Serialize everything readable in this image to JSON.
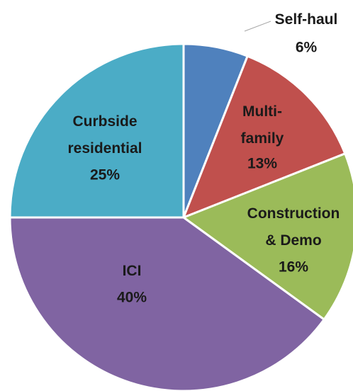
{
  "chart_data": {
    "type": "pie",
    "categories": [
      "Self-haul",
      "Multi-\nfamily",
      "Construction\n& Demo",
      "ICI",
      "Curbside\nresidential"
    ],
    "values": [
      6,
      13,
      16,
      40,
      25
    ],
    "value_labels": [
      "6%",
      "13%",
      "16%",
      "40%",
      "25%"
    ],
    "colors": [
      "#4f81bd",
      "#c0504d",
      "#9bbb59",
      "#8064a2",
      "#4bacc6"
    ]
  }
}
